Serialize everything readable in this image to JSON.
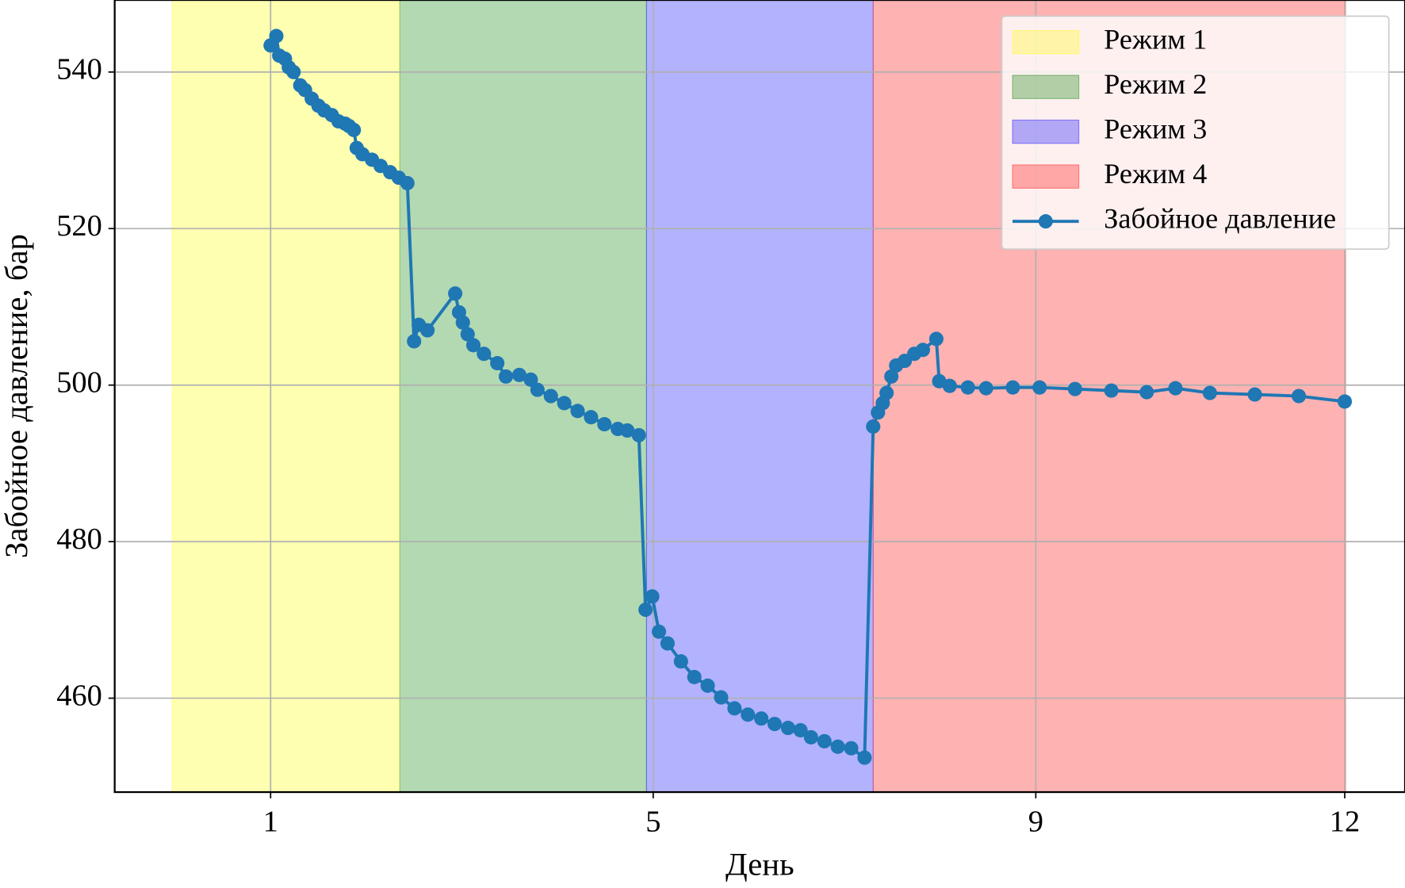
{
  "chart_data": {
    "type": "line",
    "x_label": "День",
    "y_label": "Забойное давление, бар",
    "xlim": [
      -0.63,
      12.86
    ],
    "ylim": [
      448,
      549.2
    ],
    "xticks": [
      1,
      5,
      9,
      {
        "value": 12.23,
        "label": "12"
      }
    ],
    "yticks": [
      460,
      480,
      500,
      520,
      540
    ],
    "grid": true,
    "legend": "upper right",
    "spans": [
      {
        "name": "Режим 1",
        "color": "#ffff00",
        "x0": -0.03,
        "x1": 2.35
      },
      {
        "name": "Режим 2",
        "color": "#008000",
        "x0": 2.35,
        "x1": 4.93
      },
      {
        "name": "Режим 3",
        "color": "#0000ff",
        "x0": 4.93,
        "x1": 7.3
      },
      {
        "name": "Режим 4",
        "color": "#ff0000",
        "x0": 7.3,
        "x1": 12.24
      }
    ],
    "x": [
      1.0,
      1.06,
      1.09,
      1.15,
      1.19,
      1.24,
      1.31,
      1.36,
      1.43,
      1.5,
      1.56,
      1.64,
      1.71,
      1.78,
      1.82,
      1.87,
      1.9,
      1.96,
      2.06,
      2.15,
      2.25,
      2.34,
      2.43,
      2.5,
      2.55,
      2.64,
      2.93,
      2.97,
      3.01,
      3.06,
      3.12,
      3.23,
      3.37,
      3.46,
      3.6,
      3.72,
      3.79,
      3.93,
      4.07,
      4.21,
      4.35,
      4.49,
      4.63,
      4.73,
      4.85,
      4.92,
      4.99,
      5.06,
      5.15,
      5.29,
      5.43,
      5.57,
      5.71,
      5.85,
      5.99,
      6.13,
      6.27,
      6.41,
      6.54,
      6.65,
      6.79,
      6.93,
      7.07,
      7.21,
      7.3,
      7.35,
      7.4,
      7.44,
      7.49,
      7.54,
      7.63,
      7.73,
      7.82,
      7.96,
      7.99,
      8.1,
      8.29,
      8.48,
      8.76,
      9.04,
      9.41,
      9.79,
      10.16,
      10.46,
      10.82,
      11.29,
      11.75,
      12.23
    ],
    "series": [
      {
        "name": "Забойное давление",
        "color": "#1f77b4",
        "values": [
          543.4,
          544.6,
          542.1,
          541.7,
          540.6,
          540.0,
          538.3,
          537.7,
          536.6,
          535.7,
          535.1,
          534.5,
          533.7,
          533.4,
          533.1,
          532.6,
          530.3,
          529.5,
          528.8,
          528.0,
          527.2,
          526.5,
          525.8,
          505.6,
          507.7,
          507.0,
          511.7,
          509.3,
          508.0,
          506.5,
          505.1,
          504.0,
          502.8,
          501.1,
          501.3,
          500.7,
          499.4,
          498.6,
          497.7,
          496.7,
          495.9,
          495.0,
          494.4,
          494.2,
          493.6,
          471.3,
          473.0,
          468.5,
          467.0,
          464.7,
          462.7,
          461.6,
          460.1,
          458.7,
          457.9,
          457.4,
          456.7,
          456.2,
          455.9,
          455.0,
          454.5,
          453.8,
          453.6,
          452.4,
          494.7,
          496.5,
          497.7,
          499.0,
          501.1,
          502.5,
          503.1,
          504.0,
          504.5,
          505.9,
          500.5,
          499.9,
          499.7,
          499.6,
          499.7,
          499.7,
          499.5,
          499.3,
          499.1,
          499.6,
          499.0,
          498.8,
          498.6,
          497.9
        ]
      }
    ]
  }
}
